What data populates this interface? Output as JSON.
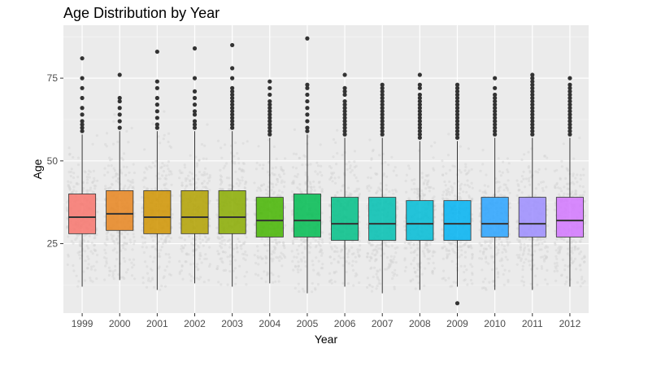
{
  "chart_data": {
    "type": "boxplot",
    "title": "Age Distribution by Year",
    "xlabel": "Year",
    "ylabel": "Age",
    "ylim": [
      4,
      91
    ],
    "yticks": [
      25,
      50,
      75
    ],
    "grid": true,
    "jitter_background": true,
    "categories": [
      "1999",
      "2000",
      "2001",
      "2002",
      "2003",
      "2004",
      "2005",
      "2006",
      "2007",
      "2008",
      "2009",
      "2010",
      "2011",
      "2012"
    ],
    "colors": [
      "#F8766D",
      "#E7851E",
      "#D09400",
      "#B2A100",
      "#89AC00",
      "#45B500",
      "#00BC51",
      "#00C087",
      "#00C0B2",
      "#00BCD6",
      "#00B3F2",
      "#29A3FF",
      "#9C8DFF",
      "#D277FF",
      "#F166E8",
      "#FF61C7"
    ],
    "boxes": [
      {
        "year": "1999",
        "min": 12,
        "q1": 28,
        "median": 33,
        "q3": 40,
        "max": 58,
        "outliers": [
          59,
          60,
          61,
          62,
          64,
          66,
          69,
          72,
          75,
          81
        ]
      },
      {
        "year": "2000",
        "min": 14,
        "q1": 29,
        "median": 34,
        "q3": 41,
        "max": 59,
        "outliers": [
          60,
          62,
          64,
          66,
          68,
          69,
          76
        ]
      },
      {
        "year": "2001",
        "min": 11,
        "q1": 28,
        "median": 33,
        "q3": 41,
        "max": 59,
        "outliers": [
          60,
          61,
          63,
          65,
          67,
          69,
          72,
          74,
          83
        ]
      },
      {
        "year": "2002",
        "min": 13,
        "q1": 28,
        "median": 33,
        "q3": 41,
        "max": 59,
        "outliers": [
          60,
          61,
          62,
          64,
          65,
          67,
          69,
          71,
          75,
          84
        ]
      },
      {
        "year": "2003",
        "min": 12,
        "q1": 28,
        "median": 33,
        "q3": 41,
        "max": 59,
        "outliers": [
          60,
          61,
          62,
          63,
          64,
          65,
          66,
          67,
          68,
          69,
          70,
          71,
          72,
          75,
          78,
          85
        ]
      },
      {
        "year": "2004",
        "min": 13,
        "q1": 27,
        "median": 32,
        "q3": 39,
        "max": 57,
        "outliers": [
          58,
          59,
          60,
          61,
          62,
          63,
          64,
          65,
          66,
          67,
          68,
          70,
          72,
          74
        ]
      },
      {
        "year": "2005",
        "min": 10,
        "q1": 27,
        "median": 32,
        "q3": 40,
        "max": 58,
        "outliers": [
          59,
          60,
          62,
          64,
          66,
          68,
          70,
          72,
          73,
          87
        ]
      },
      {
        "year": "2006",
        "min": 12,
        "q1": 26,
        "median": 31,
        "q3": 39,
        "max": 57,
        "outliers": [
          58,
          59,
          60,
          61,
          62,
          63,
          64,
          65,
          66,
          67,
          68,
          70,
          71,
          72,
          76
        ]
      },
      {
        "year": "2007",
        "min": 10,
        "q1": 26,
        "median": 31,
        "q3": 39,
        "max": 57,
        "outliers": [
          58,
          59,
          60,
          61,
          62,
          63,
          64,
          65,
          66,
          67,
          68,
          69,
          70,
          71,
          72,
          73
        ]
      },
      {
        "year": "2008",
        "min": 11,
        "q1": 26,
        "median": 31,
        "q3": 38,
        "max": 56,
        "outliers": [
          57,
          58,
          59,
          60,
          61,
          62,
          63,
          64,
          65,
          66,
          67,
          68,
          69,
          70,
          72,
          73,
          76
        ]
      },
      {
        "year": "2009",
        "min": 12,
        "q1": 26,
        "median": 31,
        "q3": 38,
        "max": 56,
        "outliers": [
          7,
          57,
          58,
          59,
          60,
          61,
          62,
          63,
          64,
          65,
          66,
          67,
          68,
          69,
          70,
          71,
          72,
          73
        ]
      },
      {
        "year": "2010",
        "min": 11,
        "q1": 27,
        "median": 31,
        "q3": 39,
        "max": 57,
        "outliers": [
          58,
          59,
          60,
          61,
          62,
          63,
          64,
          65,
          66,
          67,
          68,
          69,
          70,
          72,
          75
        ]
      },
      {
        "year": "2011",
        "min": 11,
        "q1": 27,
        "median": 31,
        "q3": 39,
        "max": 57,
        "outliers": [
          58,
          59,
          60,
          61,
          62,
          63,
          64,
          65,
          66,
          67,
          68,
          69,
          70,
          71,
          72,
          73,
          74,
          75,
          76
        ]
      },
      {
        "year": "2012",
        "min": 12,
        "q1": 27,
        "median": 32,
        "q3": 39,
        "max": 57,
        "outliers": [
          58,
          59,
          60,
          61,
          62,
          63,
          64,
          65,
          66,
          67,
          68,
          69,
          70,
          71,
          72,
          73,
          75
        ]
      }
    ]
  }
}
